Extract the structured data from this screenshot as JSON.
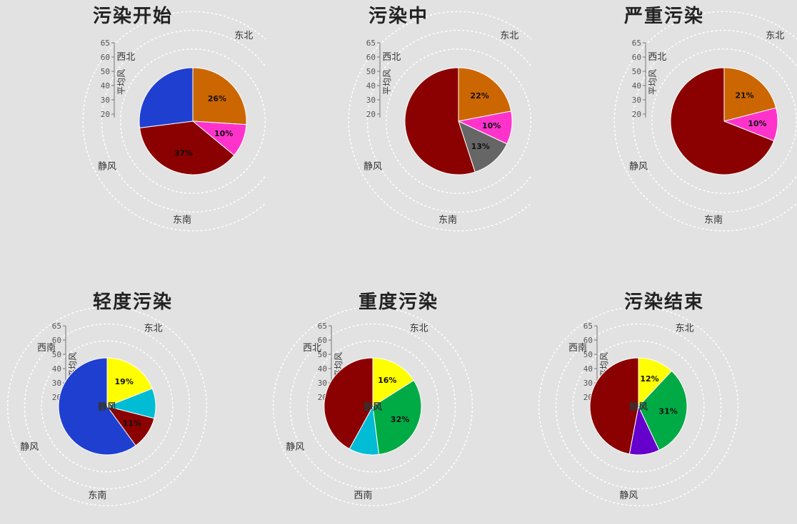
{
  "charts": [
    {
      "title": "污染开始",
      "chart_data": {
        "type": "pie",
        "slices": [
          {
            "label": "26%",
            "value": 26,
            "color": "#cc6600"
          },
          {
            "label": "10%",
            "value": 10,
            "color": "#ff33cc"
          },
          {
            "label": "37%",
            "value": 37,
            "color": "#8b0000"
          },
          {
            "label": "",
            "value": 27,
            "color": "#1f3fd1"
          }
        ],
        "center_label": "",
        "direction_labels": [
          "东北",
          "西北",
          "东南",
          "静风"
        ],
        "ylabel": "平均风",
        "yticks": [
          "65",
          "60",
          "50",
          "40",
          "30",
          "20"
        ]
      }
    },
    {
      "title": "污染中",
      "chart_data": {
        "type": "pie",
        "slices": [
          {
            "label": "22%",
            "value": 22,
            "color": "#cc6600"
          },
          {
            "label": "10%",
            "value": 10,
            "color": "#ff33cc"
          },
          {
            "label": "13%",
            "value": 13,
            "color": "#666666"
          },
          {
            "label": "",
            "value": 55,
            "color": "#8b0000"
          }
        ],
        "center_label": "",
        "direction_labels": [
          "东北",
          "西北",
          "东南",
          "静风"
        ],
        "ylabel": "平均风",
        "yticks": [
          "65",
          "60",
          "50",
          "40",
          "30",
          "20"
        ]
      }
    },
    {
      "title": "严重污染",
      "chart_data": {
        "type": "pie",
        "slices": [
          {
            "label": "21%",
            "value": 21,
            "color": "#cc6600"
          },
          {
            "label": "10%",
            "value": 10,
            "color": "#ff33cc"
          },
          {
            "label": "",
            "value": 69,
            "color": "#8b0000"
          }
        ],
        "center_label": "",
        "direction_labels": [
          "东北",
          "西北",
          "东南",
          "静风"
        ],
        "ylabel": "平均风",
        "yticks": [
          "65",
          "60",
          "50",
          "40",
          "30",
          "20"
        ]
      }
    },
    {
      "title": "轻度污染",
      "chart_data": {
        "type": "pie",
        "slices": [
          {
            "label": "19%",
            "value": 19,
            "color": "#ffff00"
          },
          {
            "label": "",
            "value": 10,
            "color": "#00bcd4"
          },
          {
            "label": "11%",
            "value": 11,
            "color": "#8b0000"
          },
          {
            "label": "",
            "value": 60,
            "color": "#1f3fd1"
          }
        ],
        "center_label": "静风",
        "direction_labels": [
          "东北",
          "西南",
          "东南",
          "静风"
        ],
        "ylabel": "平均风",
        "yticks": [
          "65",
          "60",
          "50",
          "40",
          "30",
          "20"
        ]
      }
    },
    {
      "title": "重度污染",
      "chart_data": {
        "type": "pie",
        "slices": [
          {
            "label": "16%",
            "value": 16,
            "color": "#ffff00"
          },
          {
            "label": "32%",
            "value": 32,
            "color": "#00aa44"
          },
          {
            "label": "",
            "value": 10,
            "color": "#00bcd4"
          },
          {
            "label": "",
            "value": 42,
            "color": "#8b0000"
          }
        ],
        "center_label": "静风",
        "direction_labels": [
          "东北",
          "西北",
          "西南",
          "静风"
        ],
        "ylabel": "平均风",
        "yticks": [
          "65",
          "60",
          "50",
          "40",
          "30",
          "20"
        ]
      }
    },
    {
      "title": "污染结束",
      "chart_data": {
        "type": "pie",
        "slices": [
          {
            "label": "12%",
            "value": 12,
            "color": "#ffff00"
          },
          {
            "label": "31%",
            "value": 31,
            "color": "#00aa44"
          },
          {
            "label": "",
            "value": 10,
            "color": "#6600cc"
          },
          {
            "label": "",
            "value": 47,
            "color": "#8b0000"
          }
        ],
        "center_label": "静风",
        "direction_labels": [
          "东北",
          "西南",
          "静风"
        ],
        "ylabel": "平均风",
        "yticks": [
          "65",
          "60",
          "50",
          "40",
          "30",
          "20"
        ]
      }
    }
  ]
}
